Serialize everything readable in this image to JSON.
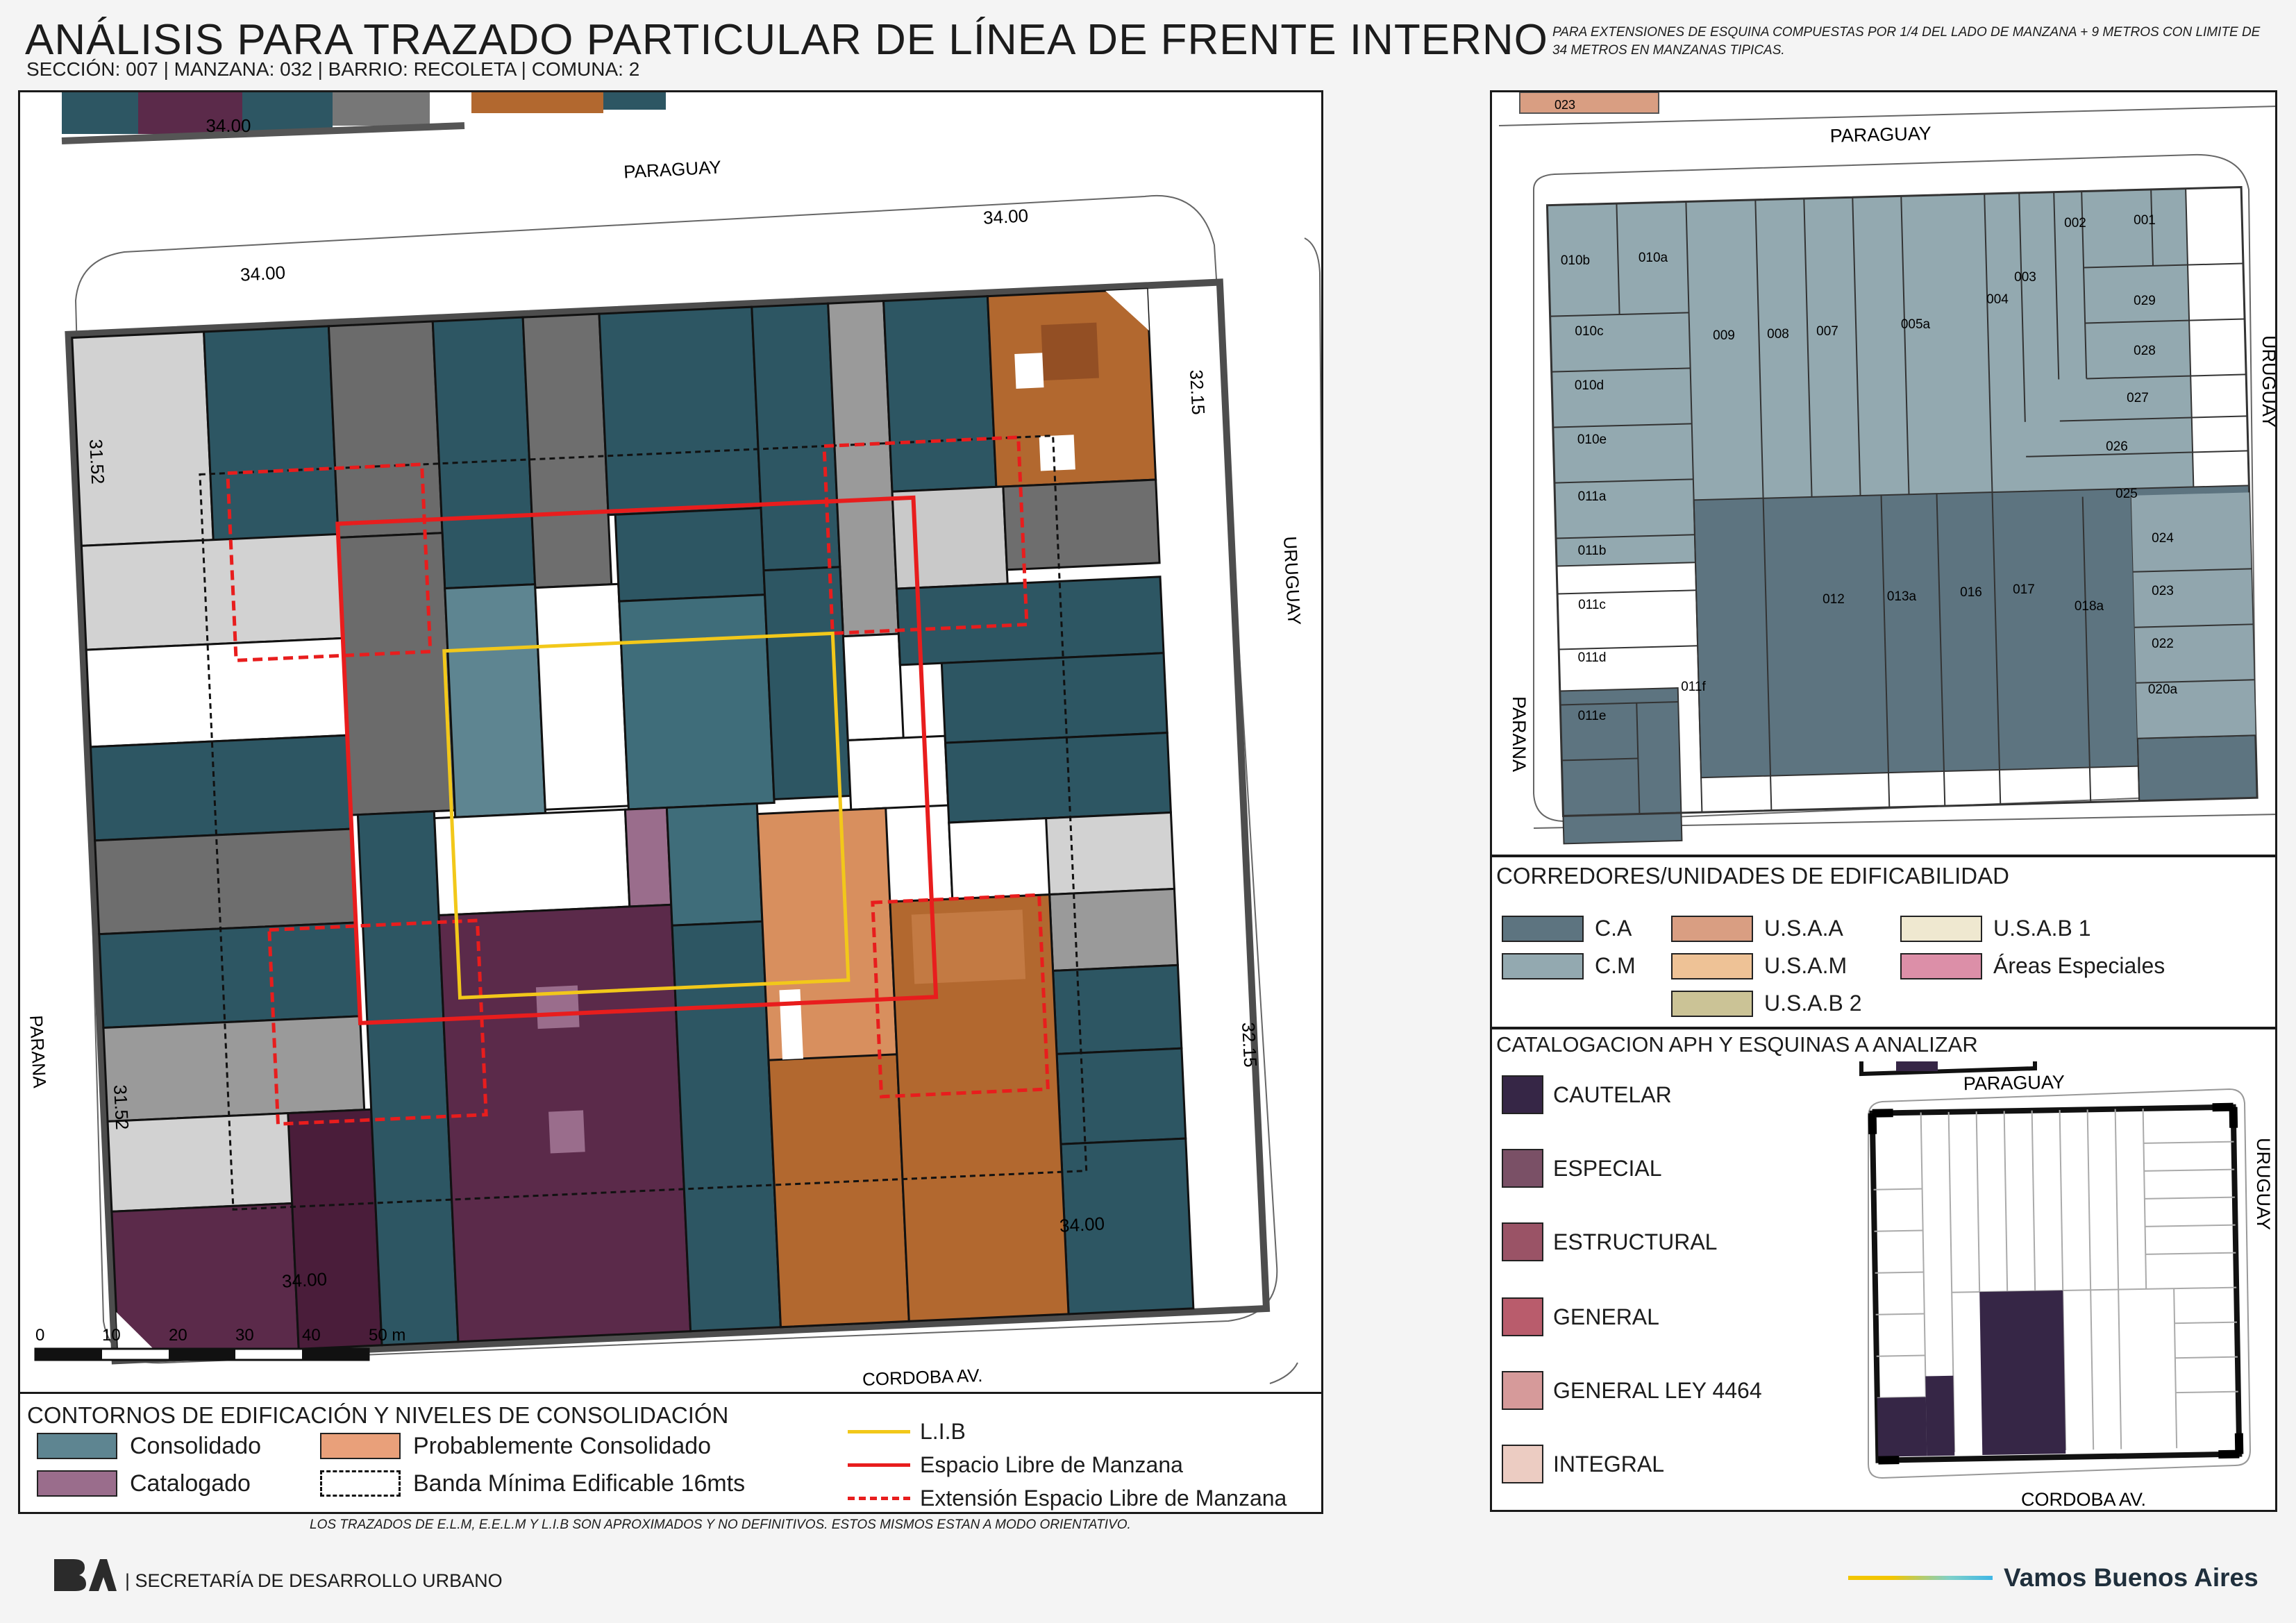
{
  "header": {
    "title": "ANÁLISIS PARA TRAZADO PARTICULAR DE LÍNEA DE FRENTE INTERNO",
    "subtitle": "SECCIÓN: 007 |  MANZANA: 032 | BARRIO: RECOLETA | COMUNA: 2",
    "note": "PARA EXTENSIONES DE ESQUINA COMPUESTAS POR 1/4 DEL LADO DE MANZANA + 9 METROS CON LIMITE DE 34 METROS EN MANZANAS TIPICAS."
  },
  "main_map": {
    "streets": {
      "north": "PARAGUAY",
      "south": "CORDOBA AV.",
      "east": "URUGUAY",
      "west": "PARANA"
    },
    "dimensions": {
      "top_left": "34.00",
      "top_right": "34.00",
      "right_top": "32.15",
      "right_bottom": "32.15",
      "bottom_right": "34.00",
      "bottom_left": "34.00",
      "left_top": "31.52",
      "left_bottom": "31.52",
      "prev_block": "34.00"
    },
    "scale": {
      "ticks": [
        "0",
        "10",
        "20",
        "30",
        "40",
        "50 m"
      ]
    }
  },
  "legend_main": {
    "title": "CONTORNOS DE EDIFICACIÓN Y NIVELES DE CONSOLIDACIÓN",
    "items": [
      {
        "label": "Consolidado",
        "color": "#5e8591"
      },
      {
        "label": "Catalogado",
        "color": "#9a6d8c"
      },
      {
        "label": "Probablemente Consolidado",
        "color": "#e9a07a"
      },
      {
        "label": "Banda Mínima Edificable 16mts",
        "color": "#ffffff"
      }
    ],
    "lines": [
      {
        "label": "L.I.B",
        "color": "#f2c81a"
      },
      {
        "label": "Espacio Libre de Manzana",
        "color": "#e81d1d"
      },
      {
        "label": "Extensión Espacio Libre de Manzana",
        "color": "#e81d1d"
      }
    ]
  },
  "parcel_map": {
    "streets": {
      "north": "PARAGUAY",
      "east": "URUGUAY",
      "west": "PARANA"
    },
    "prev_parcel": "023",
    "parcels": [
      "010b",
      "010a",
      "009",
      "008",
      "007",
      "005a",
      "004",
      "003",
      "002",
      "001",
      "029",
      "028",
      "027",
      "026",
      "025",
      "024",
      "023",
      "022",
      "020a",
      "018a",
      "017",
      "016",
      "013a",
      "012",
      "011f",
      "011e",
      "011d",
      "011c",
      "011b",
      "011a",
      "010e",
      "010d",
      "010c"
    ]
  },
  "legend_corredores": {
    "title": "CORREDORES/UNIDADES DE EDIFICABILIDAD",
    "items": [
      {
        "label": "C.A",
        "color": "#5d7480"
      },
      {
        "label": "C.M",
        "color": "#93a9b0"
      },
      {
        "label": "U.S.A.A",
        "color": "#d99e82"
      },
      {
        "label": "U.S.A.M",
        "color": "#eec296"
      },
      {
        "label": "U.S.A.B 2",
        "color": "#cbc396"
      },
      {
        "label": "U.S.A.B 1",
        "color": "#efe8d0"
      },
      {
        "label": "Áreas Especiales",
        "color": "#dc8fa8"
      }
    ]
  },
  "legend_catalogacion": {
    "title": "CATALOGACION APH Y ESQUINAS A ANALIZAR",
    "items": [
      {
        "label": "CAUTELAR",
        "color": "#362646"
      },
      {
        "label": "ESPECIAL",
        "color": "#7a5066"
      },
      {
        "label": "ESTRUCTURAL",
        "color": "#9a5366"
      },
      {
        "label": "GENERAL",
        "color": "#b95c6c"
      },
      {
        "label": "GENERAL LEY 4464",
        "color": "#d69a9a"
      },
      {
        "label": "INTEGRAL",
        "color": "#ecccc2"
      }
    ]
  },
  "mini_map": {
    "streets": {
      "north": "PARAGUAY",
      "east": "URUGUAY",
      "south": "CORDOBA AV."
    }
  },
  "footer": {
    "note": "LOS TRAZADOS DE E.L.M, E.E.L.M Y L.I.B SON APROXIMADOS Y NO DEFINITIVOS. ESTOS MISMOS ESTAN A MODO ORIENTATIVO.",
    "department": "| SECRETARÍA DE DESARROLLO URBANO",
    "logo": "BA",
    "brand": "Vamos Buenos Aires"
  }
}
